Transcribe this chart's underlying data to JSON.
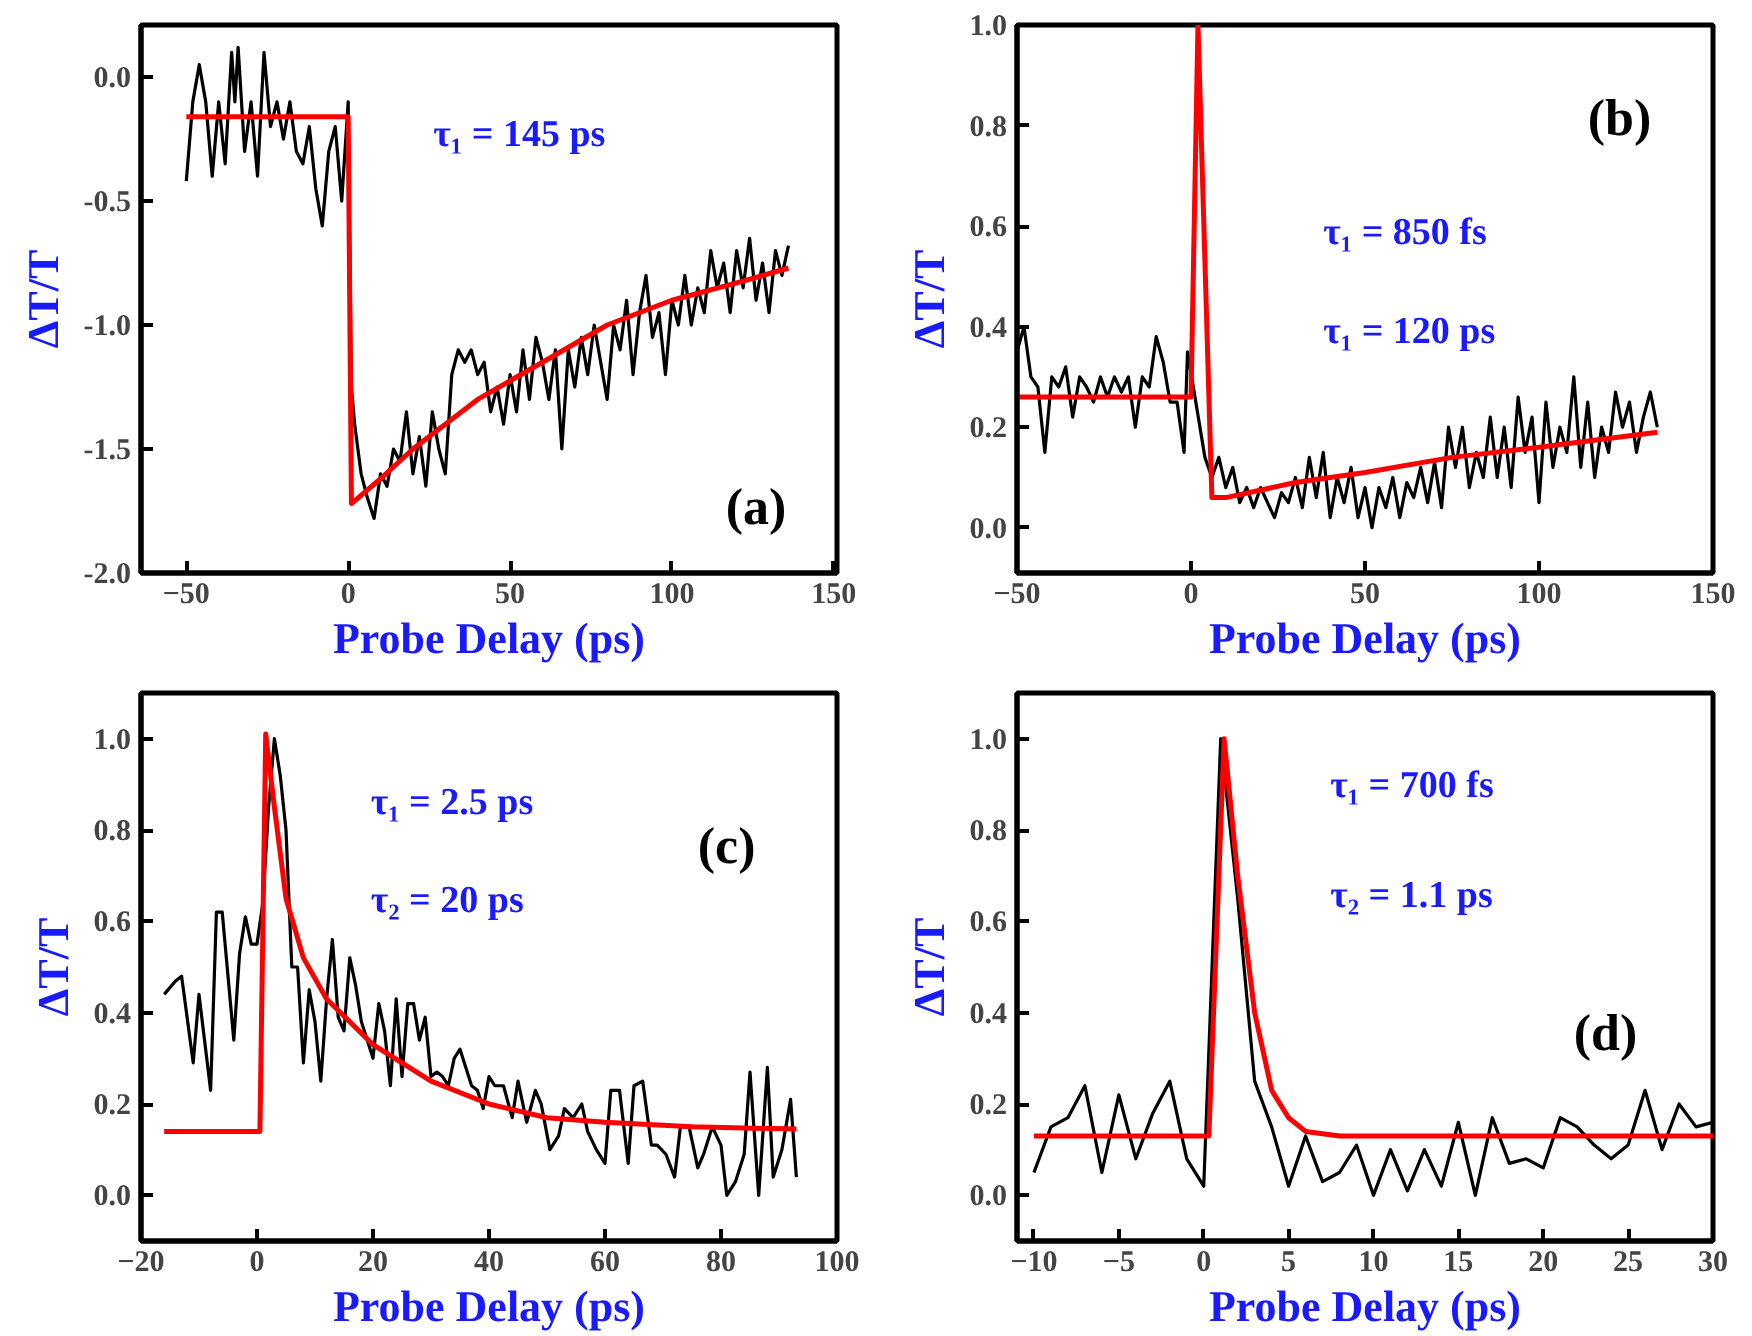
{
  "chart_data": [
    {
      "type": "line",
      "xlabel": "Probe Delay (ps)",
      "ylabel": "ΔT/T",
      "xlim": [
        -64,
        151
      ],
      "ylim": [
        -2.0,
        0.21
      ],
      "xticks": [
        -50,
        0,
        50,
        100,
        150
      ],
      "yticks": [
        {
          "value": -2,
          "label": "-2.0"
        },
        {
          "value": -1.5,
          "label": "-1.5"
        },
        {
          "value": -1,
          "label": "-1.0"
        },
        {
          "value": -0.5,
          "label": "-0.5"
        },
        {
          "value": 0,
          "label": "0.0"
        }
      ],
      "series": [
        {
          "color": "#000000",
          "x": [
            -50,
            -48,
            -46,
            -44,
            -42,
            -40,
            -38,
            -36,
            -35,
            -34,
            -32,
            -30,
            -28,
            -26,
            -24,
            -22,
            -20,
            -18,
            -16,
            -14,
            -12,
            -10,
            -8,
            -6,
            -4,
            -2,
            0,
            1,
            2,
            4,
            6,
            8,
            10,
            12,
            14,
            16,
            18,
            20,
            22,
            24,
            26,
            28,
            30,
            32,
            34,
            36,
            38,
            40,
            42,
            44,
            46,
            48,
            50,
            52,
            54,
            56,
            58,
            60,
            62,
            64,
            66,
            68,
            70,
            72,
            74,
            76,
            78,
            80,
            82,
            84,
            86,
            88,
            90,
            92,
            94,
            96,
            98,
            100,
            102,
            104,
            106,
            108,
            110,
            112,
            114,
            116,
            118,
            120,
            122,
            124,
            126,
            128,
            130,
            132,
            134,
            136
          ],
          "values": [
            -0.42,
            -0.1,
            0.05,
            -0.1,
            -0.4,
            -0.1,
            -0.35,
            0.1,
            -0.1,
            0.12,
            -0.3,
            -0.1,
            -0.4,
            0.1,
            -0.2,
            -0.1,
            -0.25,
            -0.1,
            -0.3,
            -0.35,
            -0.2,
            -0.45,
            -0.6,
            -0.3,
            -0.2,
            -0.5,
            -0.1,
            -1.25,
            -1.4,
            -1.6,
            -1.7,
            -1.78,
            -1.6,
            -1.65,
            -1.5,
            -1.55,
            -1.35,
            -1.6,
            -1.45,
            -1.65,
            -1.35,
            -1.5,
            -1.6,
            -1.2,
            -1.1,
            -1.15,
            -1.1,
            -1.2,
            -1.15,
            -1.35,
            -1.25,
            -1.4,
            -1.2,
            -1.35,
            -1.1,
            -1.3,
            -1.05,
            -1.15,
            -1.3,
            -1.1,
            -1.5,
            -1.1,
            -1.25,
            -1.05,
            -1.2,
            -1.0,
            -1.15,
            -1.3,
            -1.0,
            -1.1,
            -0.9,
            -1.2,
            -0.95,
            -0.8,
            -1.05,
            -0.95,
            -1.2,
            -0.9,
            -1.0,
            -0.8,
            -1.0,
            -0.85,
            -0.95,
            -0.7,
            -0.85,
            -0.75,
            -0.95,
            -0.7,
            -0.85,
            -0.65,
            -0.9,
            -0.75,
            -0.95,
            -0.7,
            -0.8,
            -0.68
          ]
        },
        {
          "color": "#ff0000",
          "x": [
            -50,
            0,
            1,
            10,
            20,
            40,
            60,
            80,
            100,
            120,
            136
          ],
          "values": [
            -0.16,
            -0.16,
            -1.72,
            -1.62,
            -1.5,
            -1.3,
            -1.15,
            -1.0,
            -0.9,
            -0.83,
            -0.77
          ]
        }
      ],
      "annotations": [
        "τ₁ = 145 ps",
        "(a)"
      ]
    },
    {
      "type": "line",
      "xlabel": "Probe Delay (ps)",
      "ylabel": "ΔT/T",
      "xlim": [
        -50,
        150
      ],
      "ylim": [
        -0.09,
        1.0
      ],
      "xticks": [
        -50,
        0,
        50,
        100,
        150
      ],
      "yticks": [
        {
          "value": 0,
          "label": "0.0"
        },
        0.2,
        0.4,
        0.6,
        0.8,
        {
          "value": 1,
          "label": "1.0"
        }
      ],
      "series": [
        {
          "color": "#000000",
          "x": [
            -50,
            -48,
            -46,
            -44,
            -42,
            -40,
            -38,
            -36,
            -34,
            -32,
            -30,
            -28,
            -26,
            -24,
            -22,
            -20,
            -18,
            -16,
            -14,
            -12,
            -10,
            -8,
            -6,
            -4,
            -2,
            -1,
            4,
            6,
            8,
            10,
            12,
            14,
            16,
            18,
            20,
            22,
            24,
            26,
            28,
            30,
            32,
            34,
            36,
            38,
            40,
            42,
            44,
            46,
            48,
            50,
            52,
            54,
            56,
            58,
            60,
            62,
            64,
            66,
            68,
            70,
            72,
            74,
            76,
            78,
            80,
            82,
            84,
            86,
            88,
            90,
            92,
            94,
            96,
            98,
            100,
            102,
            104,
            106,
            108,
            110,
            112,
            114,
            116,
            118,
            120,
            122,
            124,
            126,
            128,
            130,
            132,
            134
          ],
          "values": [
            0.35,
            0.4,
            0.3,
            0.28,
            0.15,
            0.3,
            0.28,
            0.32,
            0.22,
            0.3,
            0.28,
            0.25,
            0.3,
            0.26,
            0.3,
            0.27,
            0.3,
            0.2,
            0.3,
            0.28,
            0.38,
            0.33,
            0.25,
            0.25,
            0.15,
            0.35,
            0.14,
            0.1,
            0.14,
            0.08,
            0.12,
            0.05,
            0.08,
            0.04,
            0.08,
            0.05,
            0.02,
            0.07,
            0.05,
            0.1,
            0.04,
            0.14,
            0.06,
            0.15,
            0.02,
            0.1,
            0.05,
            0.12,
            0.02,
            0.08,
            0.0,
            0.08,
            0.04,
            0.1,
            0.02,
            0.09,
            0.06,
            0.12,
            0.05,
            0.13,
            0.04,
            0.2,
            0.12,
            0.2,
            0.08,
            0.15,
            0.1,
            0.22,
            0.1,
            0.2,
            0.08,
            0.26,
            0.15,
            0.22,
            0.05,
            0.25,
            0.12,
            0.2,
            0.15,
            0.3,
            0.12,
            0.25,
            0.1,
            0.2,
            0.15,
            0.27,
            0.2,
            0.25,
            0.15,
            0.22,
            0.27,
            0.2
          ]
        },
        {
          "color": "#ff0000",
          "x": [
            -50,
            0,
            2,
            6,
            10,
            30,
            50,
            75,
            100,
            134
          ],
          "values": [
            0.26,
            0.26,
            1.0,
            0.06,
            0.06,
            0.09,
            0.11,
            0.14,
            0.16,
            0.19
          ]
        }
      ],
      "annotations": [
        "τ₁ = 850 fs",
        "τ₁ = 120 ps",
        "(b)"
      ]
    },
    {
      "type": "line",
      "xlabel": "Probe Delay (ps)",
      "ylabel": "ΔT/T",
      "xlim": [
        -20,
        100
      ],
      "ylim": [
        -0.1,
        1.1
      ],
      "xticks": [
        -20,
        0,
        20,
        40,
        60,
        80,
        100
      ],
      "yticks": [
        {
          "value": 0,
          "label": "0.0"
        },
        0.2,
        0.4,
        0.6,
        0.8,
        {
          "value": 1,
          "label": "1.0"
        }
      ],
      "series": [
        {
          "color": "#000000",
          "x": [
            -16,
            -14,
            -13,
            -11,
            -10,
            -8,
            -7,
            -6,
            -4,
            -3,
            -2,
            -1,
            0,
            1,
            2,
            3,
            4,
            5,
            6,
            7,
            8,
            9,
            10,
            11,
            12,
            13,
            14,
            15,
            16,
            17,
            18,
            19,
            20,
            21,
            22,
            23,
            24,
            25,
            26,
            27,
            28,
            29,
            30,
            31,
            32,
            33,
            34,
            35,
            37,
            38,
            39,
            40,
            41,
            42.5,
            44,
            45,
            46.5,
            48,
            49,
            50.5,
            52,
            53,
            54.5,
            56,
            57,
            58.5,
            60,
            61,
            62.5,
            64,
            65,
            66.5,
            68,
            69,
            70.5,
            72,
            73,
            74.5,
            76,
            77,
            78.5,
            80,
            81,
            82.5,
            84,
            85,
            86.5,
            88,
            89,
            90.5,
            92,
            93
          ],
          "values": [
            0.44,
            0.47,
            0.48,
            0.29,
            0.44,
            0.23,
            0.62,
            0.62,
            0.34,
            0.53,
            0.61,
            0.55,
            0.55,
            0.64,
            0.85,
            1.0,
            0.92,
            0.8,
            0.5,
            0.5,
            0.29,
            0.45,
            0.38,
            0.25,
            0.43,
            0.56,
            0.39,
            0.36,
            0.52,
            0.46,
            0.38,
            0.34,
            0.3,
            0.42,
            0.36,
            0.24,
            0.43,
            0.26,
            0.42,
            0.42,
            0.34,
            0.39,
            0.26,
            0.27,
            0.26,
            0.24,
            0.3,
            0.32,
            0.24,
            0.23,
            0.19,
            0.26,
            0.24,
            0.24,
            0.17,
            0.25,
            0.16,
            0.23,
            0.2,
            0.1,
            0.13,
            0.19,
            0.17,
            0.2,
            0.14,
            0.1,
            0.07,
            0.23,
            0.23,
            0.07,
            0.24,
            0.25,
            0.11,
            0.11,
            0.09,
            0.04,
            0.15,
            0.15,
            0.06,
            0.09,
            0.15,
            0.11,
            0.0,
            0.03,
            0.09,
            0.27,
            0.0,
            0.28,
            0.04,
            0.1,
            0.21,
            0.04
          ]
        },
        {
          "color": "#ff0000",
          "x": [
            -16,
            0.5,
            1.5,
            3,
            5,
            8,
            12,
            20,
            30,
            40,
            50,
            60,
            75,
            93
          ],
          "values": [
            0.14,
            0.14,
            1.01,
            0.85,
            0.65,
            0.52,
            0.43,
            0.33,
            0.25,
            0.2,
            0.17,
            0.16,
            0.15,
            0.145
          ]
        }
      ],
      "annotations": [
        "τ₁ = 2.5 ps",
        "τ₂ = 20 ps",
        "(c)"
      ]
    },
    {
      "type": "line",
      "xlabel": "Probe Delay (ps)",
      "ylabel": "ΔT/T",
      "xlim": [
        -11,
        30
      ],
      "ylim": [
        -0.1,
        1.1
      ],
      "xticks": [
        -10,
        -5,
        0,
        5,
        10,
        15,
        20,
        25,
        30
      ],
      "yticks": [
        {
          "value": 0,
          "label": "0.0"
        },
        0.2,
        0.4,
        0.6,
        0.8,
        {
          "value": 1,
          "label": "1.0"
        }
      ],
      "series": [
        {
          "color": "#000000",
          "x": [
            -10,
            -9,
            -8,
            -7,
            -6,
            -5,
            -4,
            -3,
            -2,
            -1,
            0,
            1,
            2,
            3,
            4,
            5,
            6,
            7,
            8,
            9,
            10,
            11,
            12,
            13,
            14,
            15,
            16,
            17,
            18,
            19,
            20,
            21,
            22,
            23,
            24,
            25,
            26,
            27,
            28,
            29,
            30
          ],
          "values": [
            0.05,
            0.15,
            0.17,
            0.24,
            0.05,
            0.22,
            0.08,
            0.18,
            0.25,
            0.08,
            0.02,
            1.0,
            0.65,
            0.25,
            0.15,
            0.02,
            0.13,
            0.03,
            0.05,
            0.11,
            0.0,
            0.1,
            0.01,
            0.1,
            0.02,
            0.16,
            0.0,
            0.17,
            0.07,
            0.08,
            0.06,
            0.17,
            0.15,
            0.11,
            0.08,
            0.11,
            0.23,
            0.1,
            0.2,
            0.15,
            0.16
          ]
        },
        {
          "color": "#ff0000",
          "x": [
            -10,
            0.3,
            1.2,
            2,
            3,
            4,
            5,
            6,
            8,
            30
          ],
          "values": [
            0.13,
            0.13,
            1.0,
            0.7,
            0.4,
            0.23,
            0.17,
            0.14,
            0.13,
            0.13
          ]
        }
      ],
      "annotations": [
        "τ₁ = 700 fs",
        "τ₂ = 1.1 ps",
        "(d)"
      ]
    }
  ]
}
